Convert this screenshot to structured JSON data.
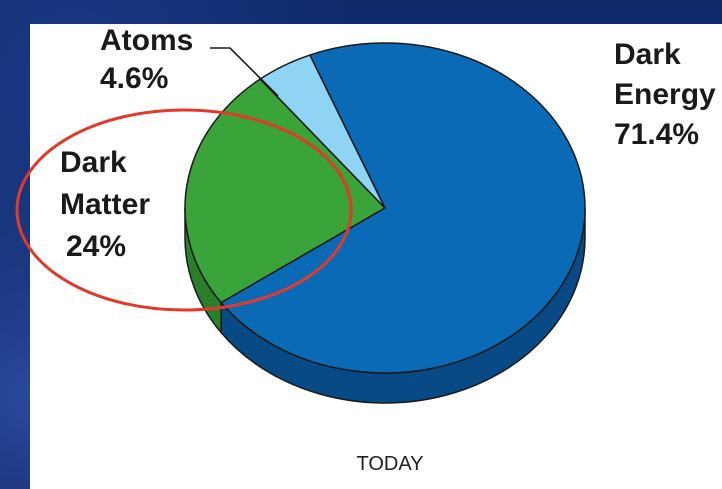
{
  "colors": {
    "dark_energy": "#0b6ab5",
    "dark_energy_side": "#074a86",
    "dark_matter": "#3aa33a",
    "dark_matter_side": "#2a7f2a",
    "atoms": "#8fd3f5",
    "atoms_side": "#5fb5df",
    "highlight_ellipse": "#e23a2a"
  },
  "chart_data": {
    "type": "pie",
    "title": "",
    "caption": "TODAY",
    "slices": [
      {
        "name_lines": [
          "Dark",
          "Energy"
        ],
        "value_label": "71.4%",
        "value": 71.4
      },
      {
        "name_lines": [
          "Dark",
          "Matter"
        ],
        "value_label": "24%",
        "value": 24
      },
      {
        "name_lines": [
          "Atoms"
        ],
        "value_label": "4.6%",
        "value": 4.6
      }
    ],
    "annotation": "red ellipse highlighting Dark Matter"
  }
}
